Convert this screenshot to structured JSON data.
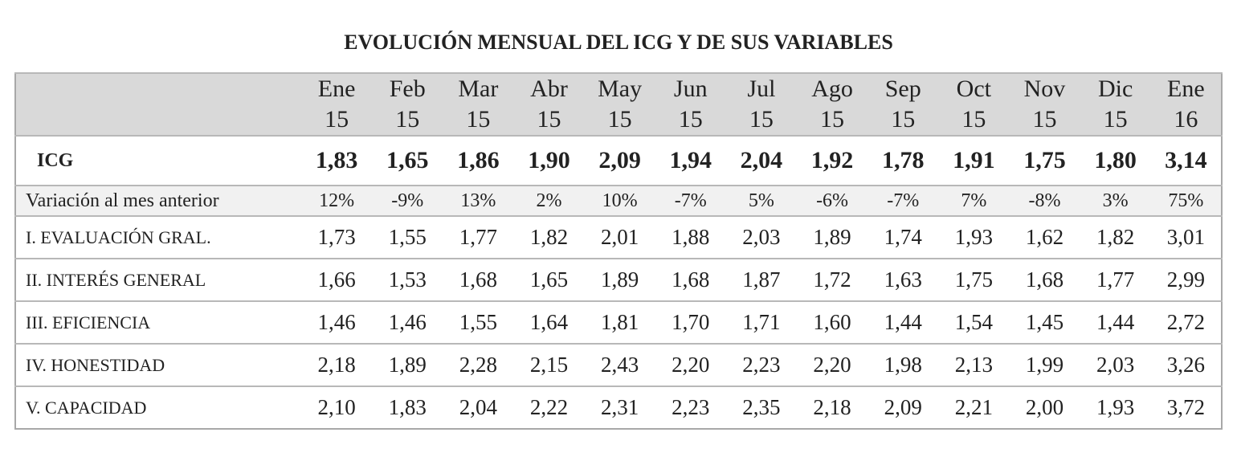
{
  "title": "EVOLUCIÓN MENSUAL DEL ICG Y DE SUS VARIABLES",
  "table": {
    "header": [
      [
        "Ene",
        "15"
      ],
      [
        "Feb",
        "15"
      ],
      [
        "Mar",
        "15"
      ],
      [
        "Abr",
        "15"
      ],
      [
        "May",
        "15"
      ],
      [
        "Jun",
        "15"
      ],
      [
        "Jul",
        "15"
      ],
      [
        "Ago",
        "15"
      ],
      [
        "Sep",
        "15"
      ],
      [
        "Oct",
        "15"
      ],
      [
        "Nov",
        "15"
      ],
      [
        "Dic",
        "15"
      ],
      [
        "Ene",
        "16"
      ]
    ],
    "rows": [
      {
        "label": "ICG",
        "values": [
          "1,83",
          "1,65",
          "1,86",
          "1,90",
          "2,09",
          "1,94",
          "2,04",
          "1,92",
          "1,78",
          "1,91",
          "1,75",
          "1,80",
          "3,14"
        ]
      },
      {
        "label": "Variación al mes anterior",
        "values": [
          "12%",
          "-9%",
          "13%",
          "2%",
          "10%",
          "-7%",
          "5%",
          "-6%",
          "-7%",
          "7%",
          "-8%",
          "3%",
          "75%"
        ]
      },
      {
        "label": "I. EVALUACIÓN  GRAL.",
        "values": [
          "1,73",
          "1,55",
          "1,77",
          "1,82",
          "2,01",
          "1,88",
          "2,03",
          "1,89",
          "1,74",
          "1,93",
          "1,62",
          "1,82",
          "3,01"
        ]
      },
      {
        "label": "II. INTERÉS GENERAL",
        "values": [
          "1,66",
          "1,53",
          "1,68",
          "1,65",
          "1,89",
          "1,68",
          "1,87",
          "1,72",
          "1,63",
          "1,75",
          "1,68",
          "1,77",
          "2,99"
        ]
      },
      {
        "label": "III. EFICIENCIA",
        "values": [
          "1,46",
          "1,46",
          "1,55",
          "1,64",
          "1,81",
          "1,70",
          "1,71",
          "1,60",
          "1,44",
          "1,54",
          "1,45",
          "1,44",
          "2,72"
        ]
      },
      {
        "label": "IV. HONESTIDAD",
        "values": [
          "2,18",
          "1,89",
          "2,28",
          "2,15",
          "2,43",
          "2,20",
          "2,23",
          "2,20",
          "1,98",
          "2,13",
          "1,99",
          "2,03",
          "3,26"
        ]
      },
      {
        "label": "V. CAPACIDAD",
        "values": [
          "2,10",
          "1,83",
          "2,04",
          "2,22",
          "2,31",
          "2,23",
          "2,35",
          "2,18",
          "2,09",
          "2,21",
          "2,00",
          "1,93",
          "3,72"
        ]
      }
    ]
  }
}
